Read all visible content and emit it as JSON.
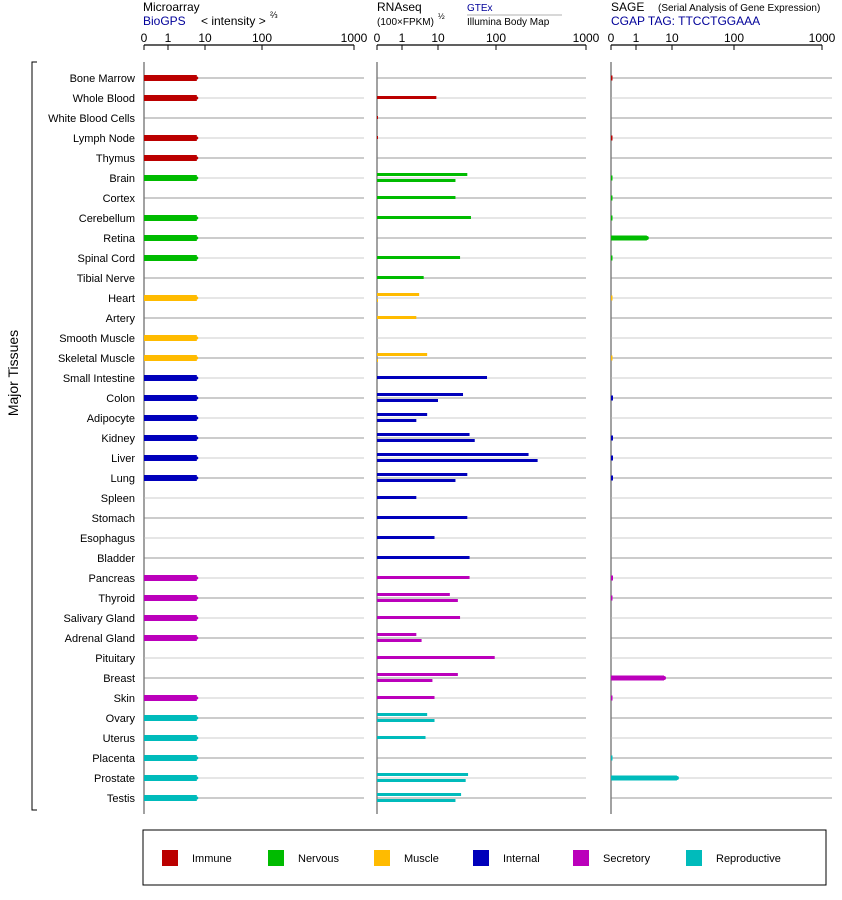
{
  "panels": {
    "microarray": {
      "title": "Microarray",
      "source": "BioGPS",
      "unit_text": "< intensity >",
      "unit_exp": "⅔"
    },
    "rnaseq": {
      "title": "RNAseq",
      "unit_text": "(100×FPKM)",
      "unit_exp": "½",
      "source_a": "GTEx",
      "source_b": "Illumina Body Map"
    },
    "sage": {
      "title": "SAGE",
      "subtitle": "(Serial Analysis of Gene Expression)",
      "tag": "CGAP TAG: TTCCTGGAAA"
    }
  },
  "y_title": "Major Tissues",
  "legend": [
    {
      "label": "Immune",
      "color": "#bb0000"
    },
    {
      "label": "Nervous",
      "color": "#00bb00"
    },
    {
      "label": "Muscle",
      "color": "#ffbb00"
    },
    {
      "label": "Internal",
      "color": "#0000bb"
    },
    {
      "label": "Secretory",
      "color": "#bb00bb"
    },
    {
      "label": "Reproductive",
      "color": "#00bbbb"
    }
  ],
  "chart_data": {
    "type": "bar",
    "orientation": "horizontal",
    "x_ticks": [
      "0",
      "1",
      "10",
      "100",
      "1000"
    ],
    "x_tick_values": [
      0,
      1,
      10,
      100,
      1000
    ],
    "categories": [
      "Bone Marrow",
      "Whole Blood",
      "White Blood Cells",
      "Lymph Node",
      "Thymus",
      "Brain",
      "Cortex",
      "Cerebellum",
      "Retina",
      "Spinal Cord",
      "Tibial Nerve",
      "Heart",
      "Artery",
      "Smooth Muscle",
      "Skeletal Muscle",
      "Small Intestine",
      "Colon",
      "Adipocyte",
      "Kidney",
      "Liver",
      "Lung",
      "Spleen",
      "Stomach",
      "Esophagus",
      "Bladder",
      "Pancreas",
      "Thyroid",
      "Salivary Gland",
      "Adrenal Gland",
      "Pituitary",
      "Breast",
      "Skin",
      "Ovary",
      "Uterus",
      "Placenta",
      "Prostate",
      "Testis"
    ],
    "category_group": [
      "Immune",
      "Immune",
      "Immune",
      "Immune",
      "Immune",
      "Nervous",
      "Nervous",
      "Nervous",
      "Nervous",
      "Nervous",
      "Nervous",
      "Muscle",
      "Muscle",
      "Muscle",
      "Muscle",
      "Internal",
      "Internal",
      "Internal",
      "Internal",
      "Internal",
      "Internal",
      "Internal",
      "Internal",
      "Internal",
      "Internal",
      "Secretory",
      "Secretory",
      "Secretory",
      "Secretory",
      "Secretory",
      "Secretory",
      "Secretory",
      "Reproductive",
      "Reproductive",
      "Reproductive",
      "Reproductive",
      "Reproductive"
    ],
    "series": [
      {
        "name": "Microarray",
        "values": [
          6,
          6,
          null,
          6,
          6,
          6,
          null,
          6,
          6,
          6,
          null,
          6,
          null,
          6,
          6,
          6,
          6,
          6,
          6,
          6,
          6,
          null,
          null,
          null,
          null,
          6,
          6,
          6,
          6,
          null,
          null,
          6,
          6,
          6,
          6,
          6,
          6
        ]
      },
      {
        "name": "GTEx",
        "values": [
          null,
          9,
          0.02,
          0.02,
          null,
          32,
          20,
          37,
          null,
          24,
          4,
          3,
          2.5,
          null,
          5,
          70,
          27,
          5,
          35,
          230,
          32,
          2.5,
          32,
          8,
          35,
          35,
          16,
          24,
          2.5,
          95,
          22,
          8,
          5,
          4.5,
          null,
          33,
          25
        ]
      },
      {
        "name": "Illumina Body Map",
        "values": [
          null,
          null,
          null,
          null,
          null,
          20,
          null,
          null,
          null,
          null,
          null,
          0.01,
          null,
          null,
          0.01,
          null,
          10,
          2.5,
          43,
          290,
          20,
          null,
          null,
          null,
          null,
          null,
          22,
          null,
          3.5,
          null,
          7,
          null,
          8,
          null,
          null,
          30,
          20
        ]
      },
      {
        "name": "SAGE",
        "values": [
          0.05,
          null,
          null,
          0.05,
          null,
          0.05,
          0.03,
          0.05,
          2,
          0.05,
          null,
          0.03,
          null,
          null,
          0.03,
          null,
          0.08,
          null,
          0.08,
          0.08,
          0.08,
          null,
          null,
          null,
          null,
          0.08,
          0.05,
          null,
          null,
          null,
          6,
          0.05,
          null,
          null,
          0.05,
          12,
          null
        ]
      }
    ]
  }
}
